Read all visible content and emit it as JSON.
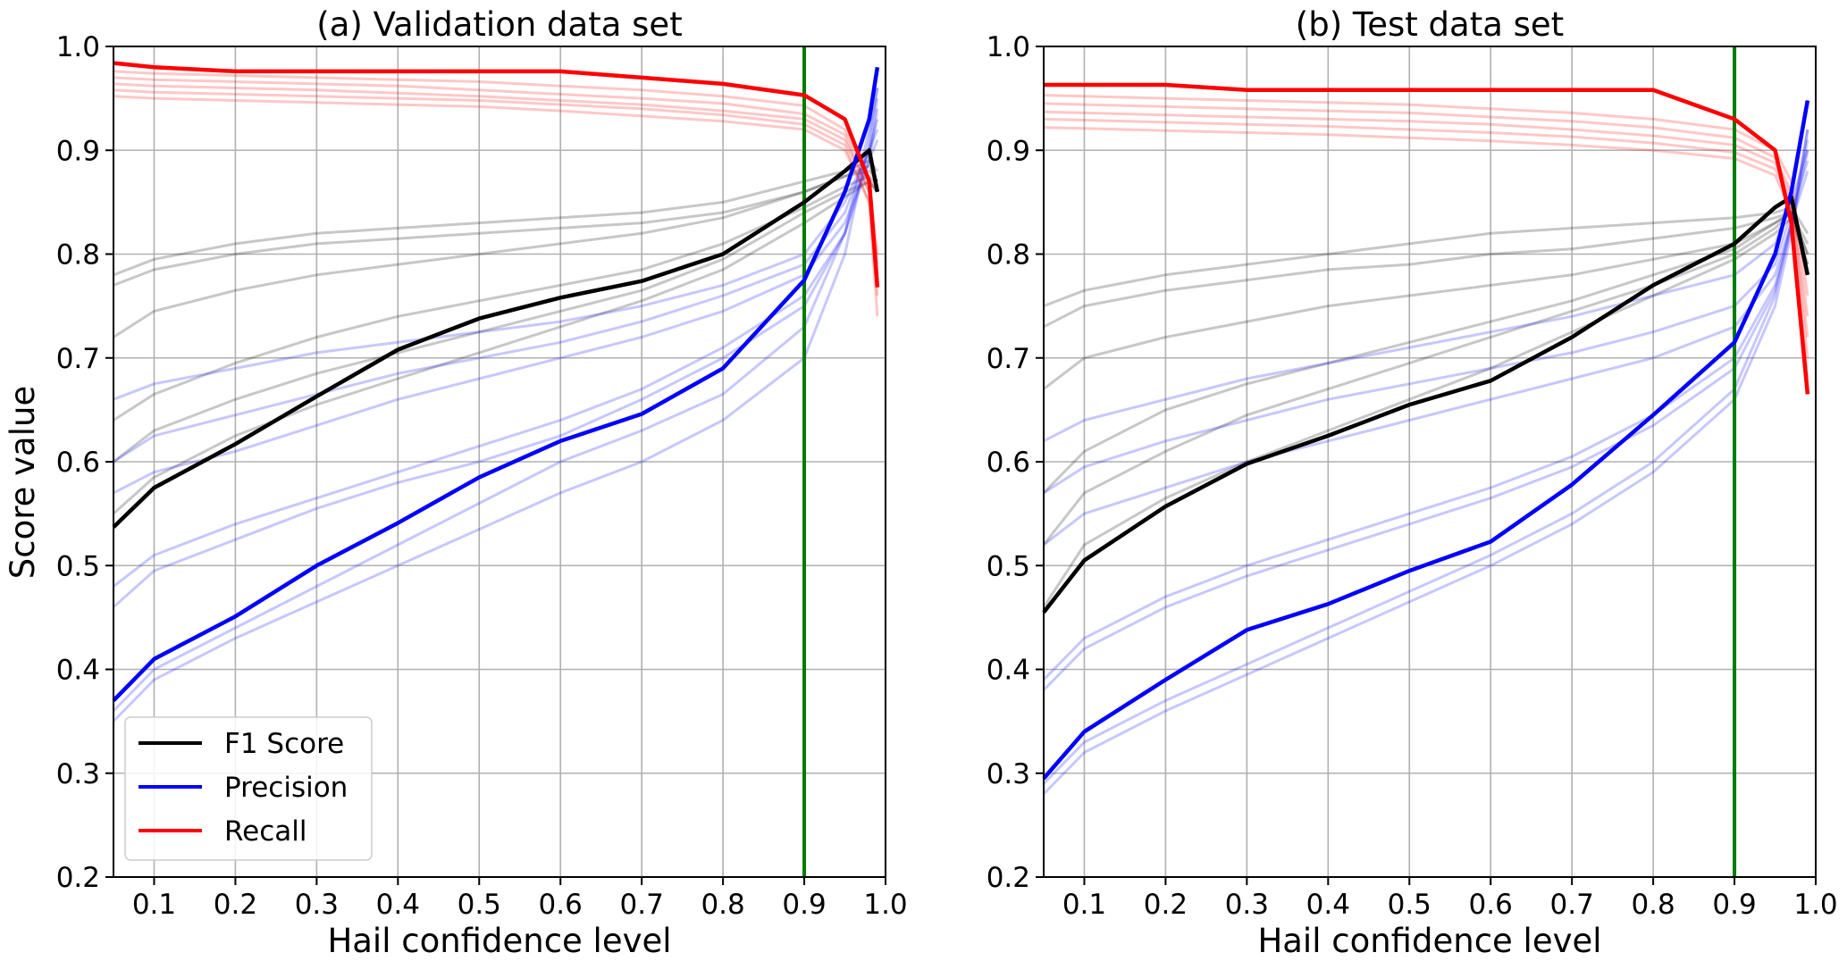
{
  "figure": {
    "ylabel": "Score value",
    "legend": [
      {
        "label": "F1 Score",
        "color": "#000000"
      },
      {
        "label": "Precision",
        "color": "#0000ff"
      },
      {
        "label": "Recall",
        "color": "#ff0000"
      }
    ]
  },
  "chart_data": [
    {
      "type": "line",
      "title": "(a) Validation data set",
      "xlabel": "Hail confidence level",
      "ylabel": "Score value",
      "xlim": [
        0.05,
        1.0
      ],
      "ylim": [
        0.2,
        1.0
      ],
      "xticks": [
        "0.1",
        "0.2",
        "0.3",
        "0.4",
        "0.5",
        "0.6",
        "0.7",
        "0.8",
        "0.9",
        "1.0"
      ],
      "yticks": [
        "0.2",
        "0.3",
        "0.4",
        "0.5",
        "0.6",
        "0.7",
        "0.8",
        "0.9",
        "1.0"
      ],
      "grid": true,
      "legend_position": "lower-left",
      "threshold_line": {
        "x": 0.9,
        "color": "#007a00"
      },
      "x": [
        0.05,
        0.1,
        0.2,
        0.3,
        0.4,
        0.5,
        0.6,
        0.7,
        0.8,
        0.9,
        0.95,
        0.98,
        0.99
      ],
      "series": [
        {
          "name": "F1 Score",
          "color": "#000000",
          "values": [
            0.537,
            0.575,
            0.617,
            0.663,
            0.708,
            0.738,
            0.758,
            0.774,
            0.8,
            0.85,
            0.88,
            0.9,
            0.86
          ]
        },
        {
          "name": "Precision",
          "color": "#0000ff",
          "values": [
            0.37,
            0.41,
            0.451,
            0.5,
            0.541,
            0.585,
            0.62,
            0.646,
            0.69,
            0.775,
            0.86,
            0.93,
            0.98
          ]
        },
        {
          "name": "Recall",
          "color": "#ff0000",
          "values": [
            0.984,
            0.98,
            0.976,
            0.976,
            0.976,
            0.976,
            0.976,
            0.97,
            0.964,
            0.953,
            0.93,
            0.87,
            0.768
          ]
        }
      ],
      "faint_series": [
        {
          "color": "#000000",
          "values": [
            0.78,
            0.795,
            0.81,
            0.82,
            0.825,
            0.83,
            0.835,
            0.84,
            0.85,
            0.87,
            0.88,
            0.89,
            0.88
          ]
        },
        {
          "color": "#000000",
          "values": [
            0.77,
            0.785,
            0.8,
            0.81,
            0.815,
            0.82,
            0.825,
            0.83,
            0.84,
            0.86,
            0.875,
            0.885,
            0.87
          ]
        },
        {
          "color": "#000000",
          "values": [
            0.72,
            0.745,
            0.765,
            0.78,
            0.79,
            0.8,
            0.81,
            0.82,
            0.835,
            0.86,
            0.875,
            0.88,
            0.87
          ]
        },
        {
          "color": "#000000",
          "values": [
            0.64,
            0.665,
            0.695,
            0.72,
            0.74,
            0.755,
            0.77,
            0.785,
            0.81,
            0.845,
            0.865,
            0.875,
            0.865
          ]
        },
        {
          "color": "#000000",
          "values": [
            0.6,
            0.63,
            0.66,
            0.685,
            0.705,
            0.725,
            0.745,
            0.765,
            0.795,
            0.84,
            0.86,
            0.87,
            0.86
          ]
        },
        {
          "color": "#000000",
          "values": [
            0.55,
            0.585,
            0.625,
            0.655,
            0.68,
            0.705,
            0.73,
            0.755,
            0.785,
            0.83,
            0.855,
            0.87,
            0.86
          ]
        },
        {
          "color": "#0000ff",
          "values": [
            0.66,
            0.675,
            0.69,
            0.705,
            0.715,
            0.725,
            0.735,
            0.75,
            0.77,
            0.8,
            0.85,
            0.9,
            0.93
          ]
        },
        {
          "color": "#0000ff",
          "values": [
            0.6,
            0.625,
            0.645,
            0.665,
            0.685,
            0.7,
            0.715,
            0.735,
            0.76,
            0.79,
            0.84,
            0.9,
            0.92
          ]
        },
        {
          "color": "#0000ff",
          "values": [
            0.57,
            0.59,
            0.61,
            0.635,
            0.66,
            0.68,
            0.7,
            0.72,
            0.745,
            0.78,
            0.83,
            0.89,
            0.91
          ]
        },
        {
          "color": "#0000ff",
          "values": [
            0.48,
            0.51,
            0.54,
            0.565,
            0.59,
            0.615,
            0.64,
            0.67,
            0.71,
            0.76,
            0.82,
            0.89,
            0.94
          ]
        },
        {
          "color": "#0000ff",
          "values": [
            0.46,
            0.495,
            0.525,
            0.555,
            0.58,
            0.6,
            0.625,
            0.66,
            0.7,
            0.75,
            0.82,
            0.9,
            0.95
          ]
        },
        {
          "color": "#0000ff",
          "values": [
            0.36,
            0.4,
            0.44,
            0.48,
            0.52,
            0.56,
            0.6,
            0.63,
            0.665,
            0.73,
            0.82,
            0.92,
            0.96
          ]
        },
        {
          "color": "#0000ff",
          "values": [
            0.35,
            0.39,
            0.43,
            0.465,
            0.5,
            0.535,
            0.57,
            0.6,
            0.64,
            0.7,
            0.8,
            0.91,
            0.96
          ]
        },
        {
          "color": "#ff0000",
          "values": [
            0.976,
            0.974,
            0.972,
            0.97,
            0.968,
            0.966,
            0.962,
            0.958,
            0.952,
            0.943,
            0.92,
            0.87,
            0.8
          ]
        },
        {
          "color": "#ff0000",
          "values": [
            0.97,
            0.968,
            0.966,
            0.964,
            0.962,
            0.958,
            0.954,
            0.95,
            0.945,
            0.935,
            0.915,
            0.86,
            0.79
          ]
        },
        {
          "color": "#ff0000",
          "values": [
            0.964,
            0.962,
            0.96,
            0.958,
            0.955,
            0.952,
            0.948,
            0.944,
            0.938,
            0.93,
            0.91,
            0.86,
            0.78
          ]
        },
        {
          "color": "#ff0000",
          "values": [
            0.958,
            0.956,
            0.954,
            0.952,
            0.95,
            0.948,
            0.944,
            0.94,
            0.934,
            0.925,
            0.905,
            0.85,
            0.76
          ]
        },
        {
          "color": "#ff0000",
          "values": [
            0.952,
            0.95,
            0.948,
            0.946,
            0.944,
            0.942,
            0.938,
            0.933,
            0.928,
            0.92,
            0.9,
            0.85,
            0.74
          ]
        }
      ]
    },
    {
      "type": "line",
      "title": "(b) Test data set",
      "xlabel": "Hail confidence level",
      "ylabel": "",
      "xlim": [
        0.05,
        1.0
      ],
      "ylim": [
        0.2,
        1.0
      ],
      "xticks": [
        "0.1",
        "0.2",
        "0.3",
        "0.4",
        "0.5",
        "0.6",
        "0.7",
        "0.8",
        "0.9",
        "1.0"
      ],
      "yticks": [
        "0.2",
        "0.3",
        "0.4",
        "0.5",
        "0.6",
        "0.7",
        "0.8",
        "0.9",
        "1.0"
      ],
      "grid": true,
      "legend_position": "none",
      "threshold_line": {
        "x": 0.9,
        "color": "#007a00"
      },
      "x": [
        0.05,
        0.1,
        0.2,
        0.3,
        0.4,
        0.5,
        0.6,
        0.7,
        0.8,
        0.9,
        0.95,
        0.97,
        0.99
      ],
      "series": [
        {
          "name": "F1 Score",
          "color": "#000000",
          "values": [
            0.455,
            0.505,
            0.557,
            0.598,
            0.625,
            0.655,
            0.678,
            0.72,
            0.77,
            0.81,
            0.845,
            0.855,
            0.78
          ]
        },
        {
          "name": "Precision",
          "color": "#0000ff",
          "values": [
            0.295,
            0.34,
            0.39,
            0.438,
            0.463,
            0.495,
            0.523,
            0.578,
            0.645,
            0.715,
            0.8,
            0.86,
            0.948
          ]
        },
        {
          "name": "Recall",
          "color": "#ff0000",
          "values": [
            0.963,
            0.963,
            0.963,
            0.958,
            0.958,
            0.958,
            0.958,
            0.958,
            0.958,
            0.93,
            0.9,
            0.83,
            0.665
          ]
        }
      ],
      "faint_series": [
        {
          "color": "#000000",
          "values": [
            0.75,
            0.765,
            0.78,
            0.79,
            0.8,
            0.81,
            0.82,
            0.825,
            0.83,
            0.835,
            0.84,
            0.845,
            0.82
          ]
        },
        {
          "color": "#000000",
          "values": [
            0.73,
            0.75,
            0.765,
            0.775,
            0.785,
            0.79,
            0.8,
            0.805,
            0.815,
            0.825,
            0.835,
            0.84,
            0.81
          ]
        },
        {
          "color": "#000000",
          "values": [
            0.67,
            0.7,
            0.72,
            0.735,
            0.75,
            0.76,
            0.77,
            0.78,
            0.795,
            0.81,
            0.83,
            0.84,
            0.8
          ]
        },
        {
          "color": "#000000",
          "values": [
            0.57,
            0.61,
            0.65,
            0.675,
            0.695,
            0.715,
            0.735,
            0.755,
            0.78,
            0.805,
            0.83,
            0.84,
            0.8
          ]
        },
        {
          "color": "#000000",
          "values": [
            0.52,
            0.57,
            0.61,
            0.645,
            0.67,
            0.695,
            0.72,
            0.745,
            0.77,
            0.8,
            0.825,
            0.84,
            0.79
          ]
        },
        {
          "color": "#000000",
          "values": [
            0.46,
            0.52,
            0.565,
            0.6,
            0.63,
            0.66,
            0.69,
            0.725,
            0.76,
            0.795,
            0.82,
            0.835,
            0.79
          ]
        },
        {
          "color": "#0000ff",
          "values": [
            0.62,
            0.64,
            0.66,
            0.68,
            0.695,
            0.71,
            0.725,
            0.74,
            0.76,
            0.78,
            0.81,
            0.85,
            0.9
          ]
        },
        {
          "color": "#0000ff",
          "values": [
            0.57,
            0.595,
            0.62,
            0.64,
            0.66,
            0.675,
            0.69,
            0.705,
            0.725,
            0.75,
            0.79,
            0.84,
            0.89
          ]
        },
        {
          "color": "#0000ff",
          "values": [
            0.52,
            0.55,
            0.575,
            0.6,
            0.62,
            0.64,
            0.66,
            0.68,
            0.7,
            0.73,
            0.78,
            0.83,
            0.88
          ]
        },
        {
          "color": "#0000ff",
          "values": [
            0.39,
            0.43,
            0.47,
            0.5,
            0.525,
            0.55,
            0.575,
            0.605,
            0.645,
            0.7,
            0.77,
            0.83,
            0.91
          ]
        },
        {
          "color": "#0000ff",
          "values": [
            0.38,
            0.42,
            0.46,
            0.49,
            0.515,
            0.54,
            0.565,
            0.595,
            0.635,
            0.69,
            0.765,
            0.825,
            0.9
          ]
        },
        {
          "color": "#0000ff",
          "values": [
            0.29,
            0.33,
            0.37,
            0.405,
            0.44,
            0.475,
            0.51,
            0.55,
            0.6,
            0.67,
            0.76,
            0.83,
            0.92
          ]
        },
        {
          "color": "#0000ff",
          "values": [
            0.28,
            0.32,
            0.36,
            0.395,
            0.43,
            0.465,
            0.5,
            0.54,
            0.59,
            0.66,
            0.75,
            0.82,
            0.92
          ]
        },
        {
          "color": "#ff0000",
          "values": [
            0.953,
            0.952,
            0.95,
            0.948,
            0.946,
            0.944,
            0.94,
            0.936,
            0.93,
            0.92,
            0.9,
            0.87,
            0.76
          ]
        },
        {
          "color": "#ff0000",
          "values": [
            0.945,
            0.944,
            0.942,
            0.94,
            0.938,
            0.936,
            0.932,
            0.928,
            0.922,
            0.912,
            0.893,
            0.86,
            0.74
          ]
        },
        {
          "color": "#ff0000",
          "values": [
            0.937,
            0.936,
            0.934,
            0.932,
            0.93,
            0.928,
            0.925,
            0.92,
            0.914,
            0.905,
            0.888,
            0.855,
            0.72
          ]
        },
        {
          "color": "#ff0000",
          "values": [
            0.93,
            0.929,
            0.927,
            0.925,
            0.923,
            0.92,
            0.917,
            0.913,
            0.907,
            0.898,
            0.882,
            0.85,
            0.7
          ]
        },
        {
          "color": "#ff0000",
          "values": [
            0.922,
            0.921,
            0.919,
            0.917,
            0.915,
            0.912,
            0.909,
            0.905,
            0.9,
            0.892,
            0.876,
            0.84,
            0.68
          ]
        }
      ]
    }
  ]
}
